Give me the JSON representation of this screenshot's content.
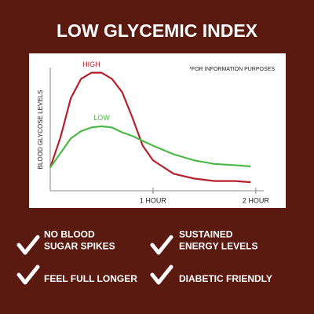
{
  "chart_data": {
    "type": "line",
    "title": "LOW GLYCEMIC INDEX",
    "ylabel": "BLOOD GLYCOSE LEVELS",
    "note": "*FOR INFORMATION PURPOSES",
    "x": [
      0,
      0.1,
      0.2,
      0.3,
      0.4,
      0.5,
      0.6,
      0.7,
      0.8,
      0.9,
      1.0,
      1.2,
      1.4,
      1.6,
      1.8,
      1.95
    ],
    "xlim": [
      0,
      2.07
    ],
    "xticks": [
      {
        "value": 1,
        "label": "1 HOUR"
      },
      {
        "value": 2,
        "label": "2 HOUR"
      }
    ],
    "ylim": [
      0,
      100
    ],
    "series": [
      {
        "name": "HIGH",
        "color": "#b5202a",
        "values": [
          19,
          44,
          76,
          92,
          97,
          97,
          92,
          81,
          60,
          37,
          25,
          14,
          10,
          8,
          8,
          7
        ]
      },
      {
        "name": "LOW",
        "color": "#4cb848",
        "values": [
          19,
          31,
          43,
          49,
          52,
          53,
          52,
          48,
          45,
          41,
          37,
          30,
          25,
          22,
          21,
          20
        ]
      }
    ]
  },
  "features": [
    {
      "lines": [
        "NO BLOOD",
        "SUGAR SPIKES"
      ]
    },
    {
      "lines": [
        "SUSTAINED",
        "ENERGY LEVELS"
      ]
    },
    {
      "lines": [
        "FEEL FULL LONGER"
      ]
    },
    {
      "lines": [
        "DIABETIC FRIENDLY"
      ]
    }
  ]
}
